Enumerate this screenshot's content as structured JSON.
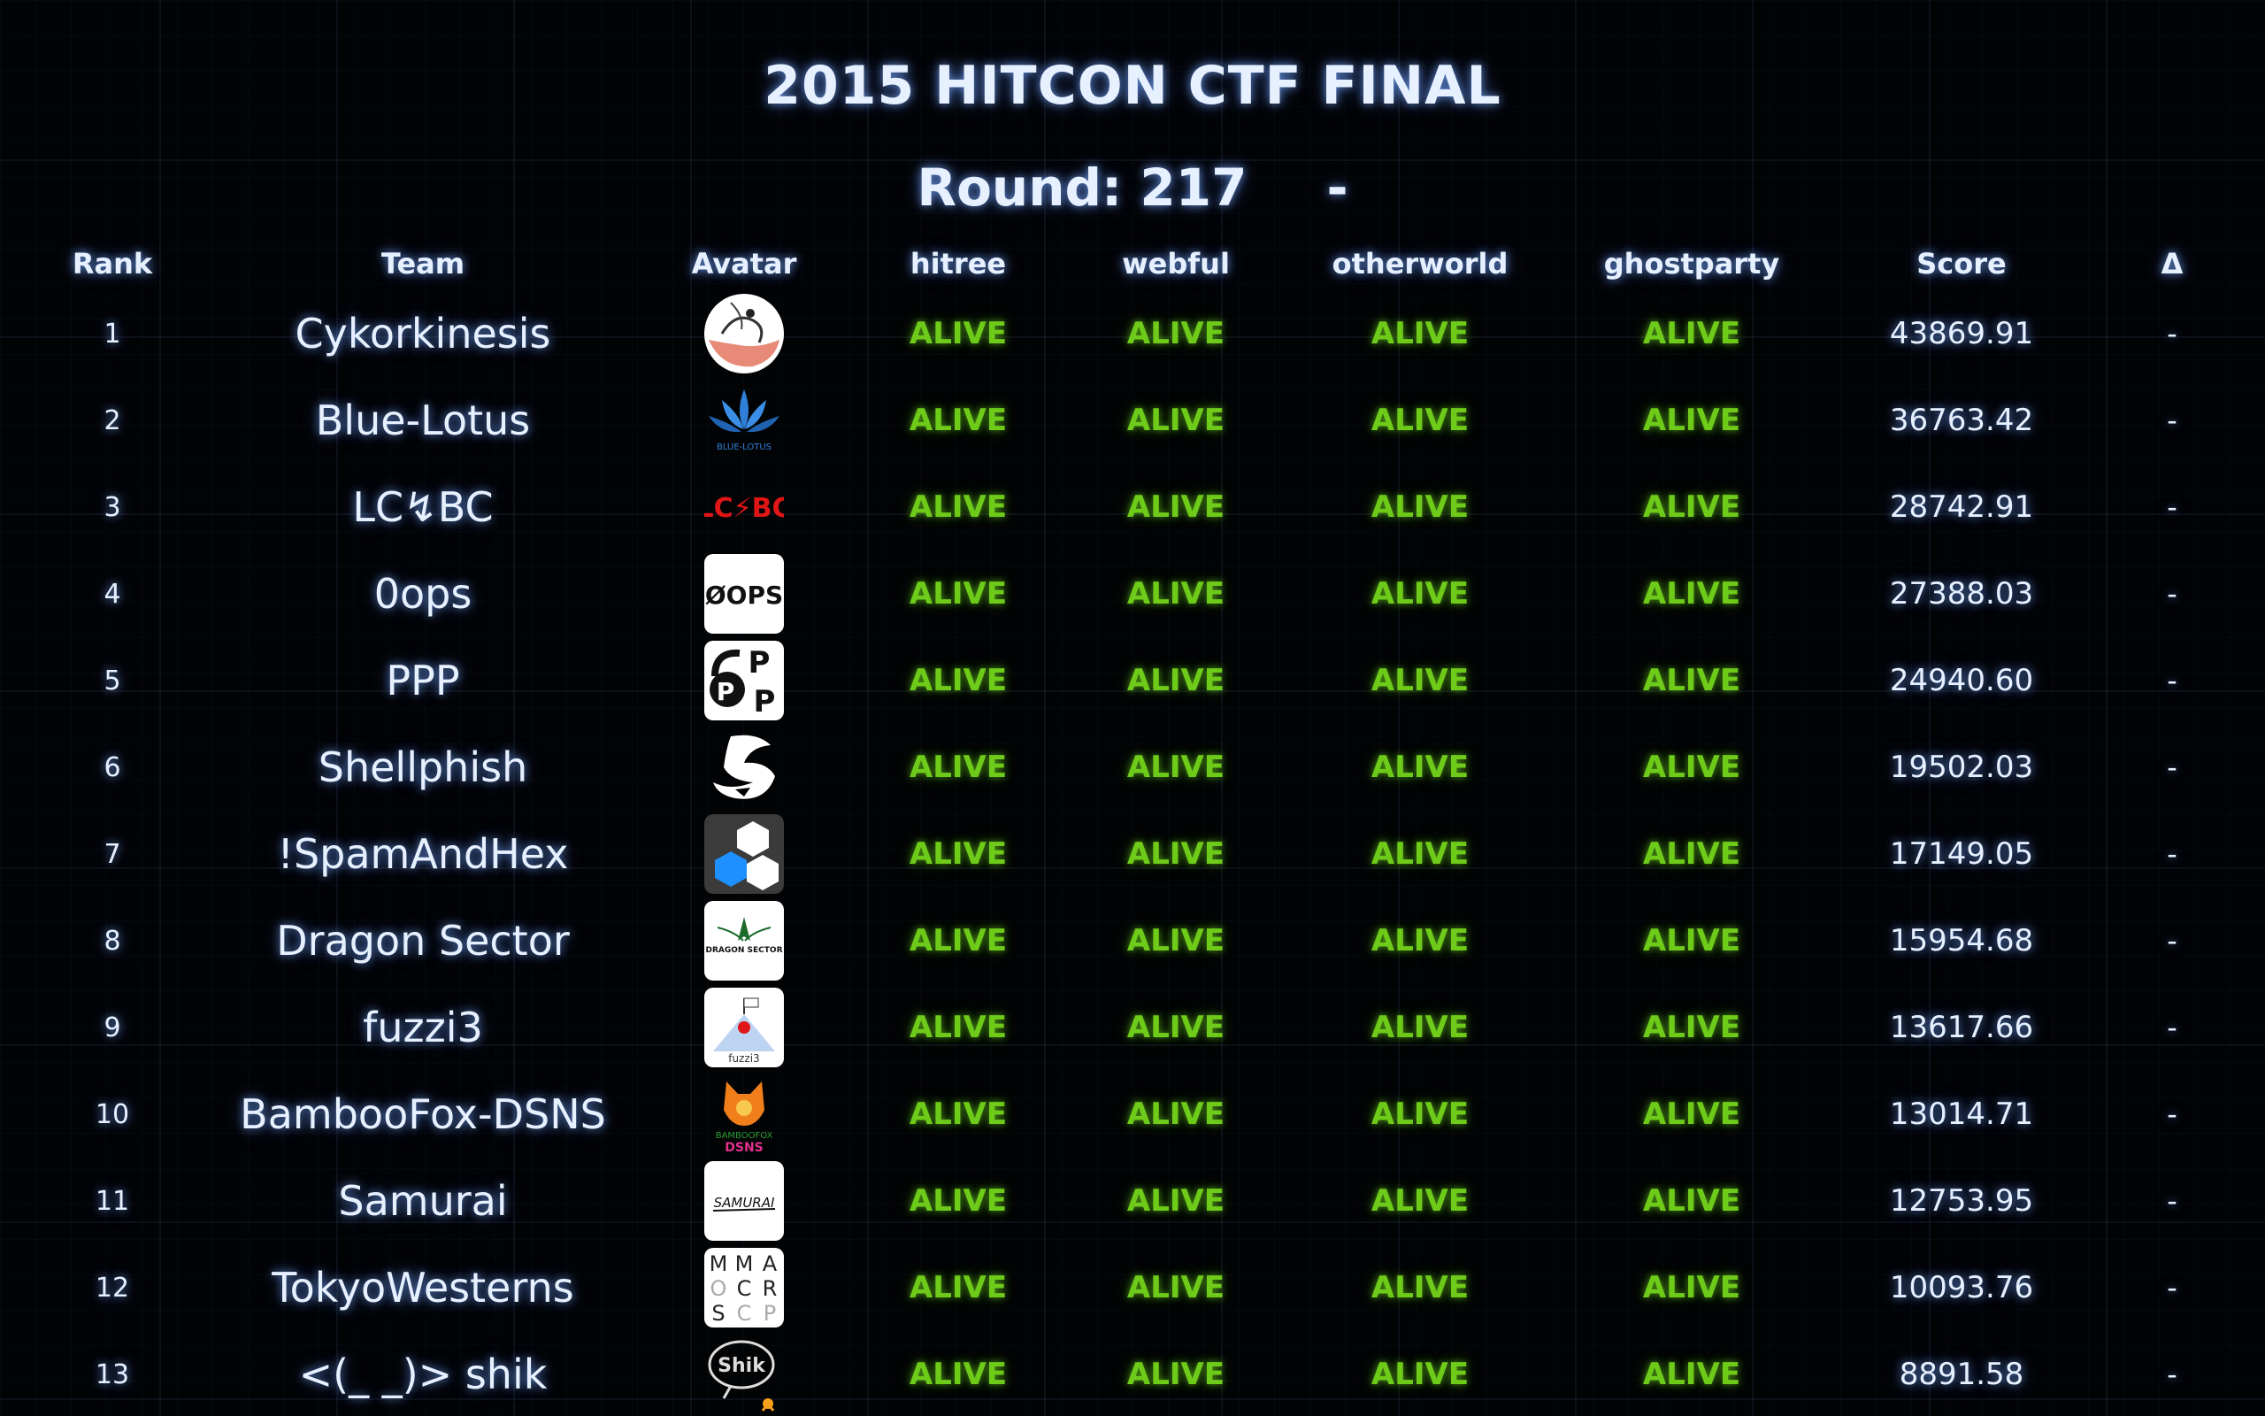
{
  "header": {
    "title": "2015 HITCON CTF FINAL",
    "round_label": "Round: 217",
    "round_status": "-"
  },
  "columns": {
    "rank": "Rank",
    "team": "Team",
    "avatar": "Avatar",
    "service1": "hitree",
    "service2": "webful",
    "service3": "otherworld",
    "service4": "ghostparty",
    "score": "Score",
    "delta": "Δ"
  },
  "colors": {
    "alive": "#6ecb1a",
    "text": "#e6f0ff",
    "glow": "#78aaff"
  },
  "avatar_text": {
    "bluelotus": "BLUE-LOTUS",
    "lcbc": "LC⚡BC",
    "oops": "ØOPS",
    "dragon": "DRAGON SECTOR",
    "fuzzi3": "fuzzi3",
    "bamboo1": "BAMBOOFOX",
    "bamboo2": "DSNS",
    "samurai": "SAMURAI",
    "mma": [
      "M",
      "M",
      "A",
      "O",
      "C",
      "R",
      "S",
      "C",
      "P"
    ],
    "shik": "Shik"
  },
  "teams": [
    {
      "rank": "1",
      "name": "Cykorkinesis",
      "avatar": "cykor-avatar-icon",
      "hitree": "ALIVE",
      "webful": "ALIVE",
      "otherworld": "ALIVE",
      "ghostparty": "ALIVE",
      "score": "43869.91",
      "delta": "-"
    },
    {
      "rank": "2",
      "name": "Blue-Lotus",
      "avatar": "lotus-flower-icon",
      "hitree": "ALIVE",
      "webful": "ALIVE",
      "otherworld": "ALIVE",
      "ghostparty": "ALIVE",
      "score": "36763.42",
      "delta": "-"
    },
    {
      "rank": "3",
      "name": "LC↯BC",
      "avatar": "lcbc-logo-icon",
      "hitree": "ALIVE",
      "webful": "ALIVE",
      "otherworld": "ALIVE",
      "ghostparty": "ALIVE",
      "score": "28742.91",
      "delta": "-"
    },
    {
      "rank": "4",
      "name": "0ops",
      "avatar": "oops-logo-icon",
      "hitree": "ALIVE",
      "webful": "ALIVE",
      "otherworld": "ALIVE",
      "ghostparty": "ALIVE",
      "score": "27388.03",
      "delta": "-"
    },
    {
      "rank": "5",
      "name": "PPP",
      "avatar": "ppp-padlock-icon",
      "hitree": "ALIVE",
      "webful": "ALIVE",
      "otherworld": "ALIVE",
      "ghostparty": "ALIVE",
      "score": "24940.60",
      "delta": "-"
    },
    {
      "rank": "6",
      "name": "Shellphish",
      "avatar": "shark-fin-icon",
      "hitree": "ALIVE",
      "webful": "ALIVE",
      "otherworld": "ALIVE",
      "ghostparty": "ALIVE",
      "score": "19502.03",
      "delta": "-"
    },
    {
      "rank": "7",
      "name": "!SpamAndHex",
      "avatar": "hexagons-icon",
      "hitree": "ALIVE",
      "webful": "ALIVE",
      "otherworld": "ALIVE",
      "ghostparty": "ALIVE",
      "score": "17149.05",
      "delta": "-"
    },
    {
      "rank": "8",
      "name": "Dragon Sector",
      "avatar": "dragon-sector-icon",
      "hitree": "ALIVE",
      "webful": "ALIVE",
      "otherworld": "ALIVE",
      "ghostparty": "ALIVE",
      "score": "15954.68",
      "delta": "-"
    },
    {
      "rank": "9",
      "name": "fuzzi3",
      "avatar": "mountain-flag-icon",
      "hitree": "ALIVE",
      "webful": "ALIVE",
      "otherworld": "ALIVE",
      "ghostparty": "ALIVE",
      "score": "13617.66",
      "delta": "-"
    },
    {
      "rank": "10",
      "name": "BambooFox-DSNS",
      "avatar": "fox-icon",
      "hitree": "ALIVE",
      "webful": "ALIVE",
      "otherworld": "ALIVE",
      "ghostparty": "ALIVE",
      "score": "13014.71",
      "delta": "-"
    },
    {
      "rank": "11",
      "name": "Samurai",
      "avatar": "samurai-logo-icon",
      "hitree": "ALIVE",
      "webful": "ALIVE",
      "otherworld": "ALIVE",
      "ghostparty": "ALIVE",
      "score": "12753.95",
      "delta": "-"
    },
    {
      "rank": "12",
      "name": "TokyoWesterns",
      "avatar": "mma-grid-icon",
      "hitree": "ALIVE",
      "webful": "ALIVE",
      "otherworld": "ALIVE",
      "ghostparty": "ALIVE",
      "score": "10093.76",
      "delta": "-"
    },
    {
      "rank": "13",
      "name": "<(_ _)> shik",
      "avatar": "shik-doodle-icon",
      "hitree": "ALIVE",
      "webful": "ALIVE",
      "otherworld": "ALIVE",
      "ghostparty": "ALIVE",
      "score": "8891.58",
      "delta": "-"
    }
  ]
}
